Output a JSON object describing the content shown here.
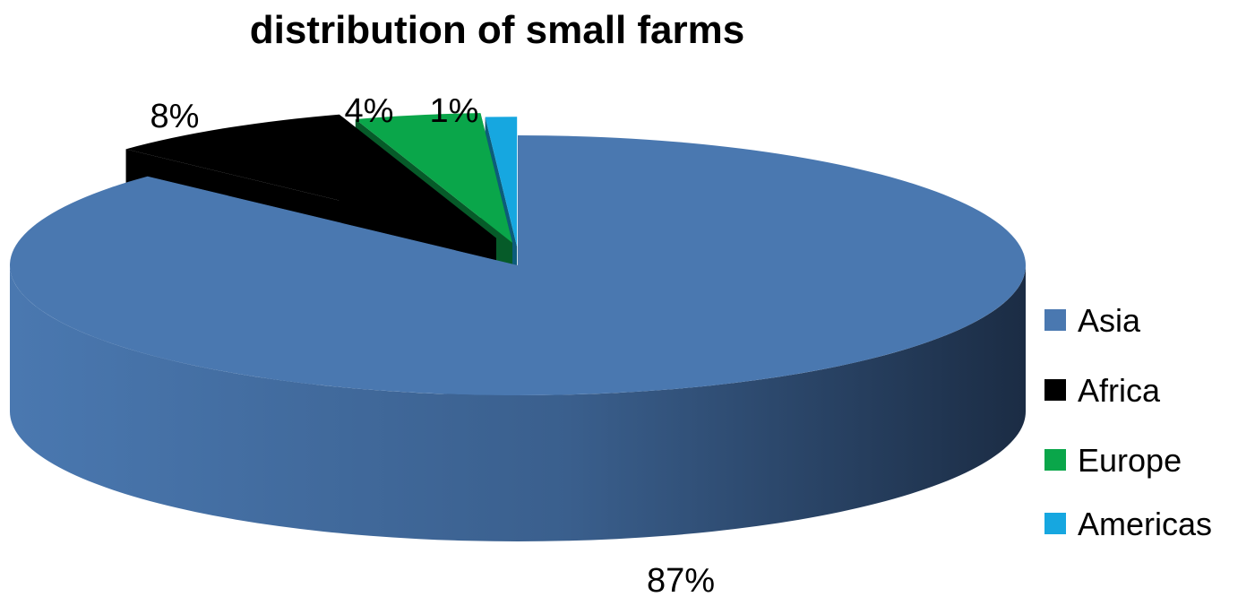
{
  "chart_data": {
    "type": "pie",
    "title": "distribution of small farms",
    "categories": [
      "Asia",
      "Africa",
      "Europe",
      "Americas"
    ],
    "values": [
      87,
      8,
      4,
      1
    ],
    "value_labels": [
      "87%",
      "8%",
      "4%",
      "1%"
    ],
    "legend_position": "right",
    "colors": [
      "#4a78b0",
      "#000000",
      "#0aa64a",
      "#16a7e0"
    ],
    "grid": false,
    "style": "3d-exploded"
  }
}
